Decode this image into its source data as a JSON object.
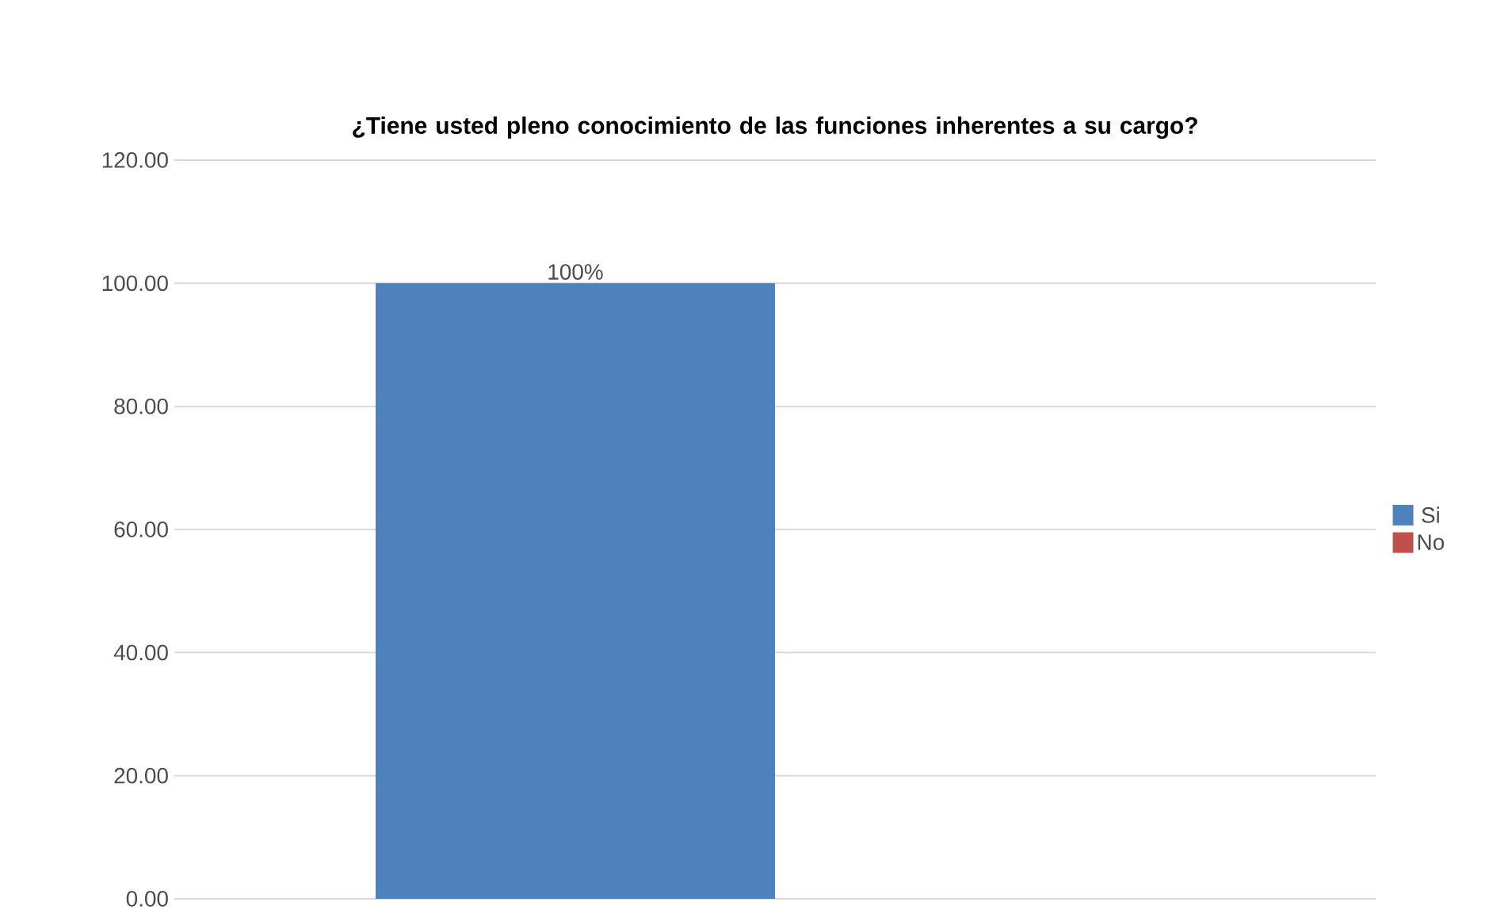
{
  "chart_data": {
    "type": "bar",
    "title": "¿Tiene usted pleno conocimiento de las funciones inherentes a su cargo?",
    "categories": [
      null
    ],
    "series": [
      {
        "name": "Si",
        "color": "#4f81bd",
        "values": [
          100
        ],
        "value_labels": [
          "100%"
        ]
      },
      {
        "name": "No",
        "color": "#c0504d",
        "values": [
          0
        ],
        "value_labels": [
          null
        ]
      }
    ],
    "ylim": [
      0,
      120
    ],
    "yticks": [
      {
        "value": 0,
        "label": "0.00"
      },
      {
        "value": 20,
        "label": "20.00"
      },
      {
        "value": 40,
        "label": "40.00"
      },
      {
        "value": 60,
        "label": "60.00"
      },
      {
        "value": 80,
        "label": "80.00"
      },
      {
        "value": 100,
        "label": "100.00"
      },
      {
        "value": 120,
        "label": "120.00"
      }
    ],
    "grid": "y",
    "legend": "right"
  }
}
